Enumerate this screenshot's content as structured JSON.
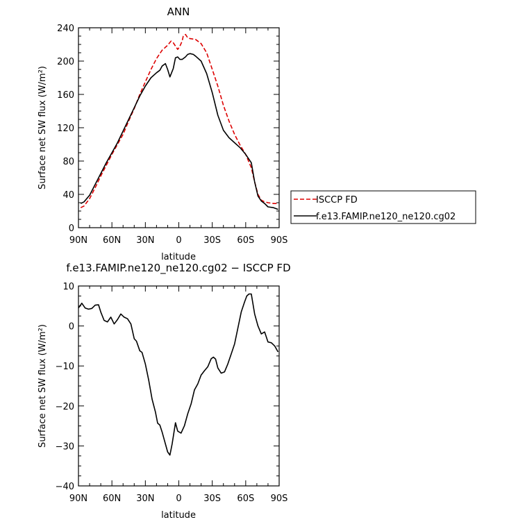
{
  "chart_data": [
    {
      "type": "line",
      "title": "ANN",
      "xlabel": "latitude",
      "ylabel": "Surface net SW flux (W/m²)",
      "xlim": [
        90,
        -90
      ],
      "ylim": [
        0,
        240
      ],
      "x_ticks": [
        90,
        60,
        30,
        0,
        -30,
        -60,
        -90
      ],
      "x_tick_labels": [
        "90N",
        "60N",
        "30N",
        "0",
        "30S",
        "60S",
        "90S"
      ],
      "y_ticks": [
        0,
        40,
        80,
        120,
        160,
        200,
        240
      ],
      "y_tick_labels": [
        "0",
        "40",
        "80",
        "120",
        "160",
        "200",
        "240"
      ],
      "grid": false,
      "legend_position": "right-outside",
      "series": [
        {
          "name": "ISCCP FD",
          "color": "#dd0000",
          "dash": "dashed",
          "points": [
            [
              88,
              24
            ],
            [
              85,
              26
            ],
            [
              80,
              35
            ],
            [
              75,
              48
            ],
            [
              70,
              62
            ],
            [
              65,
              75
            ],
            [
              60,
              88
            ],
            [
              55,
              100
            ],
            [
              50,
              112
            ],
            [
              45,
              128
            ],
            [
              40,
              143
            ],
            [
              35,
              160
            ],
            [
              30,
              175
            ],
            [
              25,
              190
            ],
            [
              20,
              203
            ],
            [
              15,
              213
            ],
            [
              10,
              219
            ],
            [
              7,
              224
            ],
            [
              5,
              222
            ],
            [
              3,
              218
            ],
            [
              1,
              214
            ],
            [
              -1,
              218
            ],
            [
              -3,
              224
            ],
            [
              -4,
              230
            ],
            [
              -6,
              232
            ],
            [
              -8,
              228
            ],
            [
              -10,
              227
            ],
            [
              -15,
              226
            ],
            [
              -20,
              221
            ],
            [
              -25,
              210
            ],
            [
              -30,
              190
            ],
            [
              -35,
              170
            ],
            [
              -40,
              147
            ],
            [
              -45,
              128
            ],
            [
              -50,
              112
            ],
            [
              -55,
              99
            ],
            [
              -60,
              88
            ],
            [
              -65,
              72
            ],
            [
              -68,
              55
            ],
            [
              -71,
              40
            ],
            [
              -74,
              33
            ],
            [
              -77,
              31
            ],
            [
              -80,
              30
            ],
            [
              -85,
              29
            ],
            [
              -89,
              29
            ]
          ]
        },
        {
          "name": "f.e13.FAMIP.ne120_ne120.cg02",
          "color": "#000000",
          "dash": "solid",
          "points": [
            [
              88,
              29
            ],
            [
              85,
              31
            ],
            [
              80,
              39
            ],
            [
              75,
              52
            ],
            [
              70,
              65
            ],
            [
              65,
              78
            ],
            [
              60,
              90
            ],
            [
              55,
              102
            ],
            [
              50,
              116
            ],
            [
              45,
              130
            ],
            [
              40,
              144
            ],
            [
              35,
              158
            ],
            [
              30,
              170
            ],
            [
              25,
              180
            ],
            [
              20,
              186
            ],
            [
              17,
              189
            ],
            [
              15,
              194
            ],
            [
              12,
              197
            ],
            [
              10,
              190
            ],
            [
              8,
              181
            ],
            [
              5,
              191
            ],
            [
              3,
              204
            ],
            [
              1,
              205
            ],
            [
              -1,
              202
            ],
            [
              -3,
              202
            ],
            [
              -6,
              205
            ],
            [
              -8,
              208
            ],
            [
              -10,
              209
            ],
            [
              -13,
              208
            ],
            [
              -15,
              206
            ],
            [
              -20,
              200
            ],
            [
              -25,
              185
            ],
            [
              -30,
              162
            ],
            [
              -35,
              135
            ],
            [
              -40,
              117
            ],
            [
              -45,
              108
            ],
            [
              -50,
              102
            ],
            [
              -55,
              96
            ],
            [
              -60,
              88
            ],
            [
              -65,
              78
            ],
            [
              -68,
              55
            ],
            [
              -71,
              38
            ],
            [
              -74,
              32
            ],
            [
              -77,
              29
            ],
            [
              -80,
              25
            ],
            [
              -85,
              24
            ],
            [
              -89,
              22
            ]
          ]
        }
      ]
    },
    {
      "type": "line",
      "title": "f.e13.FAMIP.ne120_ne120.cg02 − ISCCP FD",
      "xlabel": "latitude",
      "ylabel": "Surface net SW flux (W/m²)",
      "xlim": [
        90,
        -90
      ],
      "ylim": [
        -40,
        10
      ],
      "x_ticks": [
        90,
        60,
        30,
        0,
        -30,
        -60,
        -90
      ],
      "x_tick_labels": [
        "90N",
        "60N",
        "30N",
        "0",
        "30S",
        "60S",
        "90S"
      ],
      "y_ticks": [
        -40,
        -30,
        -20,
        -10,
        0,
        10
      ],
      "y_tick_labels": [
        "−40",
        "−30",
        "−20",
        "−10",
        "0",
        "10"
      ],
      "grid": false,
      "series": [
        {
          "color": "#000000",
          "dash": "solid",
          "points": [
            [
              90,
              4.5
            ],
            [
              87,
              5.7
            ],
            [
              84,
              4.5
            ],
            [
              81,
              4.2
            ],
            [
              78,
              4.4
            ],
            [
              75,
              5.2
            ],
            [
              72,
              5.3
            ],
            [
              70,
              3.5
            ],
            [
              67,
              1.4
            ],
            [
              64,
              1.0
            ],
            [
              61,
              2.2
            ],
            [
              58,
              0.5
            ],
            [
              55,
              1.6
            ],
            [
              52,
              3.0
            ],
            [
              49,
              2.2
            ],
            [
              46,
              1.8
            ],
            [
              43,
              0.5
            ],
            [
              40,
              -3.2
            ],
            [
              38,
              -3.8
            ],
            [
              35,
              -6.2
            ],
            [
              33,
              -6.6
            ],
            [
              30,
              -9.5
            ],
            [
              27,
              -13.5
            ],
            [
              24,
              -18.3
            ],
            [
              21,
              -21.5
            ],
            [
              19,
              -24.3
            ],
            [
              17,
              -24.8
            ],
            [
              15,
              -26.5
            ],
            [
              12,
              -29.5
            ],
            [
              10,
              -31.5
            ],
            [
              8,
              -32.3
            ],
            [
              6,
              -29.5
            ],
            [
              3,
              -24.2
            ],
            [
              1,
              -26.3
            ],
            [
              -2,
              -26.8
            ],
            [
              -5,
              -25
            ],
            [
              -8,
              -22
            ],
            [
              -11,
              -19.5
            ],
            [
              -14,
              -16
            ],
            [
              -17,
              -14.5
            ],
            [
              -20,
              -12.3
            ],
            [
              -23,
              -11.2
            ],
            [
              -26,
              -10.2
            ],
            [
              -29,
              -8.2
            ],
            [
              -31,
              -7.8
            ],
            [
              -33,
              -8.3
            ],
            [
              -35,
              -10.5
            ],
            [
              -38,
              -11.8
            ],
            [
              -41,
              -11.5
            ],
            [
              -44,
              -9.5
            ],
            [
              -47,
              -7
            ],
            [
              -50,
              -4.5
            ],
            [
              -53,
              -0.5
            ],
            [
              -56,
              3.5
            ],
            [
              -59,
              6
            ],
            [
              -61,
              7.5
            ],
            [
              -63,
              8
            ],
            [
              -65,
              8
            ],
            [
              -68,
              3
            ],
            [
              -71,
              0
            ],
            [
              -74,
              -2
            ],
            [
              -77,
              -1.5
            ],
            [
              -80,
              -4
            ],
            [
              -83,
              -4.2
            ],
            [
              -86,
              -5
            ],
            [
              -89,
              -6.5
            ]
          ]
        }
      ]
    }
  ]
}
